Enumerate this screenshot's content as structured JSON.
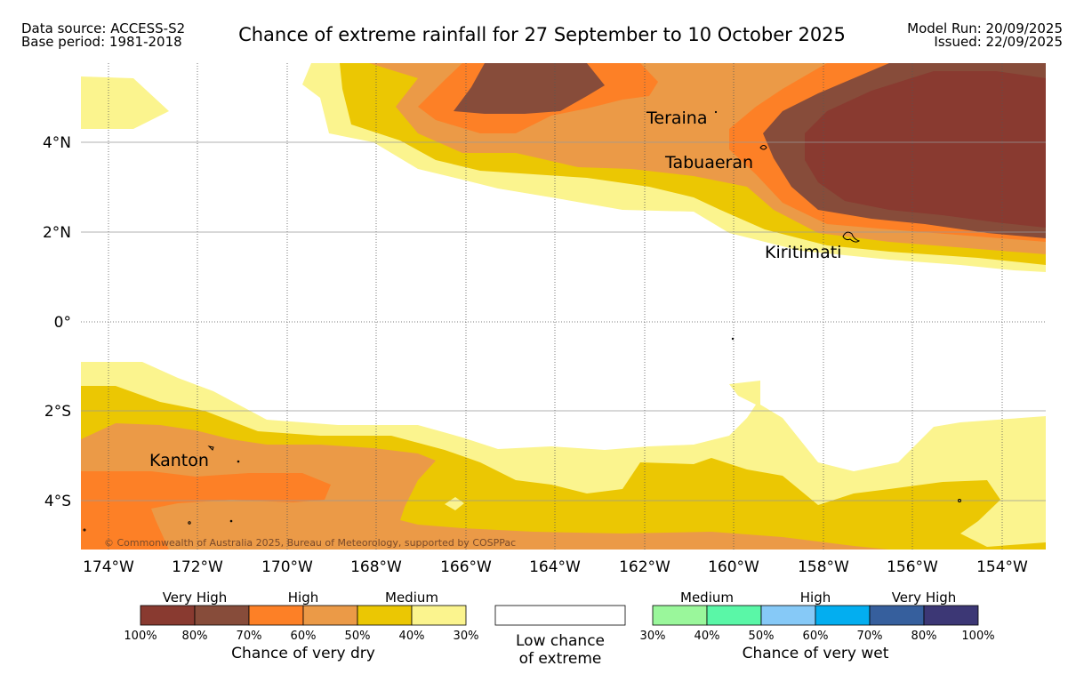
{
  "header": {
    "source_line1": "Data source: ACCESS-S2",
    "source_line2": "Base period: 1981-2018",
    "title": "Chance of extreme rainfall for 27 September to 10 October 2025",
    "run_line1": "Model Run: 20/09/2025",
    "run_line2": "Issued: 22/09/2025"
  },
  "map": {
    "lon_labels": [
      "174°W",
      "172°W",
      "170°W",
      "168°W",
      "166°W",
      "164°W",
      "162°W",
      "160°W",
      "158°W",
      "156°W",
      "154°W"
    ],
    "lat_labels": [
      "4°N",
      "2°N",
      "0°",
      "2°S",
      "4°S"
    ],
    "places": [
      "Teraina",
      "Tabuaeran",
      "Kiritimati",
      "Kanton"
    ],
    "copyright": "© Commonwealth of Australia 2025, Bureau of Meteorology, supported by COSPPac",
    "colors": {
      "dry_80_100": "#893a30",
      "dry_70_80": "#874c3a",
      "dry_60_70": "#fd8026",
      "dry_50_60": "#eb9a47",
      "dry_40_50": "#ebc703",
      "dry_30_40": "#fbf48e"
    }
  },
  "legend": {
    "dry": {
      "groups": [
        "Very High",
        "High",
        "Medium"
      ],
      "ticks": [
        "100%",
        "80%",
        "70%",
        "60%",
        "50%",
        "40%",
        "30%"
      ],
      "title": "Chance of very dry",
      "colors": [
        "#893a30",
        "#874c3a",
        "#fd8026",
        "#eb9a47",
        "#ebc703",
        "#fbf48e"
      ]
    },
    "low": {
      "line1": "Low chance",
      "line2": "of extreme"
    },
    "wet": {
      "groups": [
        "Medium",
        "High",
        "Very High"
      ],
      "ticks": [
        "30%",
        "40%",
        "50%",
        "60%",
        "70%",
        "80%",
        "100%"
      ],
      "title": "Chance of very wet",
      "colors": [
        "#9af79b",
        "#5af7a7",
        "#86c9f7",
        "#03aef0",
        "#365f9d",
        "#3c3775"
      ]
    }
  }
}
